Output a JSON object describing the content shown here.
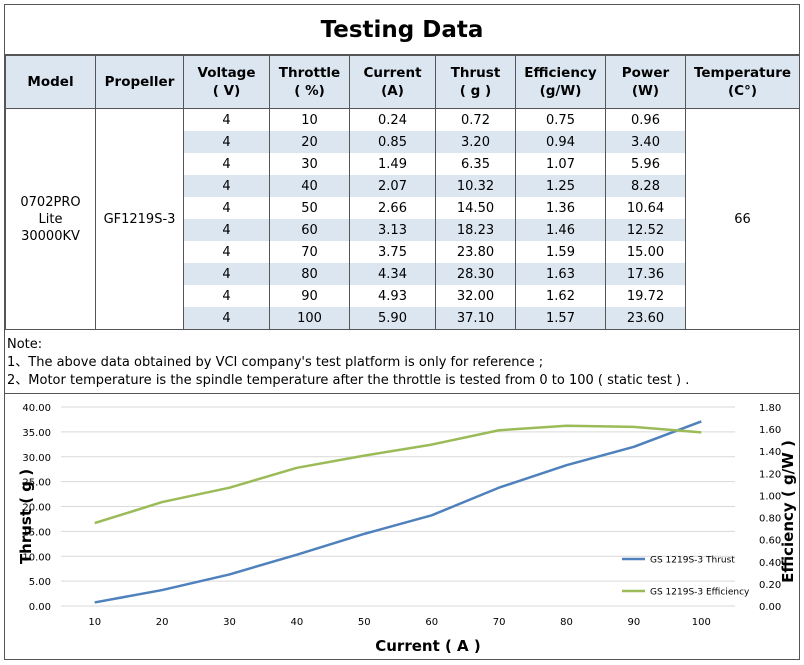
{
  "title": "Testing Data",
  "table": {
    "headers": [
      [
        "Model"
      ],
      [
        "Propeller"
      ],
      [
        "Voltage",
        "( V)"
      ],
      [
        "Throttle",
        "( %)"
      ],
      [
        "Current",
        "(A)"
      ],
      [
        "Thrust",
        "( g )"
      ],
      [
        "Efficiency",
        "(g/W)"
      ],
      [
        "Power",
        "(W)"
      ],
      [
        "Temperature",
        "(C°)"
      ]
    ],
    "model": [
      "0702PRO",
      "Lite",
      "30000KV"
    ],
    "propeller": "GF1219S-3",
    "temperature": "66",
    "rows": [
      [
        "4",
        "10",
        "0.24",
        "0.72",
        "0.75",
        "0.96"
      ],
      [
        "4",
        "20",
        "0.85",
        "3.20",
        "0.94",
        "3.40"
      ],
      [
        "4",
        "30",
        "1.49",
        "6.35",
        "1.07",
        "5.96"
      ],
      [
        "4",
        "40",
        "2.07",
        "10.32",
        "1.25",
        "8.28"
      ],
      [
        "4",
        "50",
        "2.66",
        "14.50",
        "1.36",
        "10.64"
      ],
      [
        "4",
        "60",
        "3.13",
        "18.23",
        "1.46",
        "12.52"
      ],
      [
        "4",
        "70",
        "3.75",
        "23.80",
        "1.59",
        "15.00"
      ],
      [
        "4",
        "80",
        "4.34",
        "28.30",
        "1.63",
        "17.36"
      ],
      [
        "4",
        "90",
        "4.93",
        "32.00",
        "1.62",
        "19.72"
      ],
      [
        "4",
        "100",
        "5.90",
        "37.10",
        "1.57",
        "23.60"
      ]
    ]
  },
  "notes": [
    "Note:",
    "1、The above data obtained by VCI company's test platform is only for reference ;",
    "2、Motor temperature is the spindle temperature after the throttle is tested from 0 to 100 ( static test ) ."
  ],
  "chart_data": {
    "type": "line",
    "x": [
      10,
      20,
      30,
      40,
      50,
      60,
      70,
      80,
      90,
      100
    ],
    "xlabel": "Current ( A )",
    "ylabel": "Thrust ( g )",
    "y2label": "Efficiency ( g/W )",
    "ylim": [
      0,
      40
    ],
    "y2lim": [
      0,
      1.8
    ],
    "yticks": [
      "0.00",
      "5.00",
      "10.00",
      "15.00",
      "20.00",
      "25.00",
      "30.00",
      "35.00",
      "40.00"
    ],
    "y2ticks": [
      "0.00",
      "0.20",
      "0.40",
      "0.60",
      "0.80",
      "1.00",
      "1.20",
      "1.40",
      "1.60",
      "1.80"
    ],
    "grid": true,
    "legend_position": "bottom-right",
    "series": [
      {
        "name": "GS 1219S-3 Thrust",
        "axis": "left",
        "color": "#4f81bd",
        "values": [
          0.72,
          3.2,
          6.35,
          10.32,
          14.5,
          18.23,
          23.8,
          28.3,
          32.0,
          37.1
        ]
      },
      {
        "name": "GS 1219S-3 Efficiency",
        "axis": "right",
        "color": "#9bbb59",
        "values": [
          0.75,
          0.94,
          1.07,
          1.25,
          1.36,
          1.46,
          1.59,
          1.63,
          1.62,
          1.57
        ]
      }
    ]
  },
  "colors": {
    "header_bg": "#dce6f1",
    "stripe": "#dce6f1",
    "thrust": "#4f81bd",
    "efficiency": "#9bbb59"
  }
}
